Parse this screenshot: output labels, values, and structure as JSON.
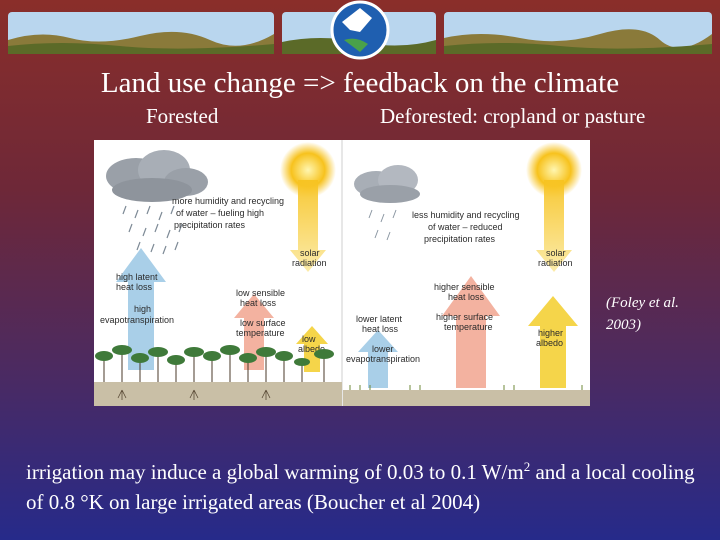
{
  "slide": {
    "title": "Land use change => feedback on the climate",
    "subtitle_left": "Forested",
    "subtitle_right": "Deforested: cropland or pasture",
    "citation": "(Foley et al. 2003)",
    "bottom_text_before_sup": "irrigation may induce a global warming of 0.03 to 0.1 W/m",
    "bottom_sup": "2",
    "bottom_text_after_sup": " and a local cooling of 0.8 °K on large irrigated areas (Boucher et al 2004)"
  },
  "figure": {
    "forested": {
      "cloud_text": [
        "more humidity and recycling",
        "of water – fueling high",
        "precipitation rates"
      ],
      "solar": [
        "solar",
        "radiation"
      ],
      "latent": [
        "high latent",
        "heat loss"
      ],
      "evapo": [
        "high",
        "evapotranspiration"
      ],
      "sensible": [
        "low sensible",
        "heat loss"
      ],
      "surface_temp": [
        "low surface",
        "temperature"
      ],
      "albedo": [
        "low",
        "albedo"
      ]
    },
    "deforested": {
      "cloud_text": [
        "less humidity and recycling",
        "of water – reduced",
        "precipitation rates"
      ],
      "solar": [
        "solar",
        "radiation"
      ],
      "sensible": [
        "higher sensible",
        "heat loss"
      ],
      "surface_temp": [
        "higher surface",
        "temperature"
      ],
      "latent": [
        "lower latent",
        "heat loss"
      ],
      "evapo": [
        "lower",
        "evapotranspiration"
      ],
      "albedo": [
        "higher",
        "albedo"
      ]
    }
  },
  "colors": {
    "sun": "#f7c21d",
    "arrow_blue": "#a9cfe8",
    "arrow_pink": "#f3b2a0",
    "arrow_yellow": "#f5d54a",
    "ground": "#c9bfa6"
  }
}
